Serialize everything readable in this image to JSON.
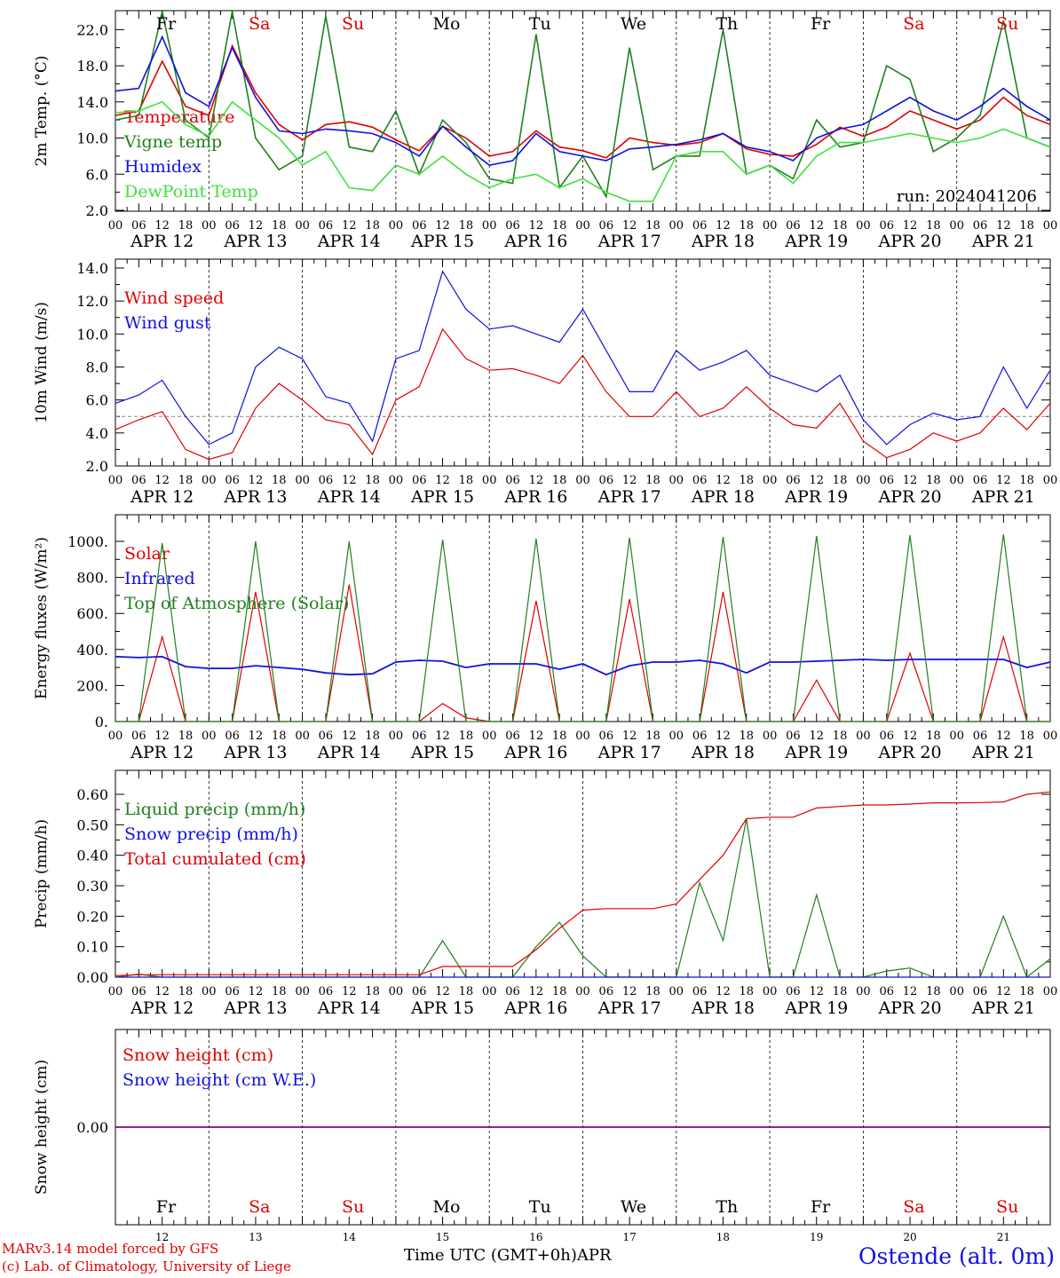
{
  "chart_data": [
    {
      "type": "line",
      "ylabel": "2m Temp. (°C)",
      "ylim": [
        2.0,
        24.0
      ],
      "yticks": [
        2.0,
        6.0,
        10.0,
        14.0,
        18.0,
        22.0
      ],
      "run_label": "run: 2024041206",
      "day_names": [
        {
          "label": "Fr",
          "color": "#000000"
        },
        {
          "label": "Sa",
          "color": "#e00000"
        },
        {
          "label": "Su",
          "color": "#e00000"
        },
        {
          "label": "Mo",
          "color": "#000000"
        },
        {
          "label": "Tu",
          "color": "#000000"
        },
        {
          "label": "We",
          "color": "#000000"
        },
        {
          "label": "Th",
          "color": "#000000"
        },
        {
          "label": "Fr",
          "color": "#000000"
        },
        {
          "label": "Sa",
          "color": "#e00000"
        },
        {
          "label": "Su",
          "color": "#e00000"
        }
      ],
      "x_hours": [
        0,
        6,
        12,
        18,
        24,
        30,
        36,
        42,
        48,
        54,
        60,
        66,
        72,
        78,
        84,
        90,
        96,
        102,
        108,
        114,
        120,
        126,
        132,
        138,
        144,
        150,
        156,
        162,
        168,
        174,
        180,
        186,
        192,
        198,
        204,
        210,
        216,
        222,
        228,
        234,
        240
      ],
      "series": [
        {
          "name": "Temperature",
          "color": "#e00000",
          "values": [
            12.5,
            13.0,
            18.5,
            13.5,
            12.5,
            20.2,
            15.0,
            11.5,
            9.8,
            11.5,
            11.8,
            11.2,
            9.8,
            8.6,
            11.3,
            10.0,
            8.0,
            8.5,
            10.8,
            9.0,
            8.6,
            7.8,
            10.0,
            9.5,
            9.2,
            9.5,
            10.5,
            8.8,
            8.2,
            8.0,
            9.3,
            11.2,
            10.2,
            11.2,
            13.0,
            12.0,
            11.0,
            12.0,
            14.5,
            12.5,
            11.5
          ]
        },
        {
          "name": "Vigne temp",
          "color": "#208020",
          "values": [
            12.0,
            12.5,
            24.0,
            12.0,
            10.0,
            24.0,
            10.0,
            6.5,
            8.0,
            23.5,
            9.0,
            8.5,
            13.0,
            6.0,
            12.0,
            9.5,
            5.5,
            5.0,
            21.5,
            4.5,
            8.0,
            3.5,
            20.0,
            6.5,
            8.0,
            8.0,
            22.0,
            6.0,
            7.0,
            5.5,
            12.0,
            9.0,
            9.5,
            18.0,
            16.5,
            8.5,
            10.0,
            12.5,
            23.0,
            10.0,
            9.0
          ]
        },
        {
          "name": "Humidex",
          "color": "#1010e0",
          "values": [
            15.2,
            15.5,
            21.2,
            15.0,
            13.5,
            20.0,
            14.5,
            10.8,
            10.5,
            11.0,
            10.8,
            10.5,
            9.5,
            8.0,
            11.3,
            9.0,
            7.0,
            7.5,
            10.5,
            8.5,
            8.0,
            7.5,
            8.8,
            9.0,
            9.3,
            9.8,
            10.5,
            9.0,
            8.5,
            7.5,
            10.0,
            11.0,
            11.5,
            13.0,
            14.5,
            13.0,
            12.0,
            13.5,
            15.5,
            13.5,
            12.0
          ]
        },
        {
          "name": "DewPoint Temp",
          "color": "#40e040",
          "values": [
            12.8,
            13.0,
            14.0,
            11.5,
            10.2,
            14.0,
            12.0,
            10.0,
            7.0,
            8.5,
            4.5,
            4.2,
            7.0,
            6.0,
            8.0,
            6.0,
            4.5,
            5.5,
            6.0,
            4.5,
            5.5,
            4.0,
            3.0,
            3.0,
            8.0,
            8.5,
            8.5,
            6.0,
            7.0,
            5.0,
            8.0,
            9.5,
            9.5,
            10.0,
            10.5,
            10.0,
            9.5,
            10.0,
            11.0,
            10.0,
            9.0
          ]
        }
      ]
    },
    {
      "type": "line",
      "ylabel": "10m Wind (m/s)",
      "ylim": [
        2.0,
        14.0
      ],
      "yticks": [
        2.0,
        4.0,
        6.0,
        8.0,
        10.0,
        12.0,
        14.0
      ],
      "ref_line": 5.0,
      "x_hours": [
        0,
        6,
        12,
        18,
        24,
        30,
        36,
        42,
        48,
        54,
        60,
        66,
        72,
        78,
        84,
        90,
        96,
        102,
        108,
        114,
        120,
        126,
        132,
        138,
        144,
        150,
        156,
        162,
        168,
        174,
        180,
        186,
        192,
        198,
        204,
        210,
        216,
        222,
        228,
        234,
        240
      ],
      "series": [
        {
          "name": "Wind speed",
          "color": "#e00000",
          "values": [
            4.2,
            4.8,
            5.3,
            3.0,
            2.4,
            2.8,
            5.5,
            7.0,
            6.0,
            4.8,
            4.5,
            2.7,
            6.0,
            6.8,
            10.3,
            8.5,
            7.8,
            7.9,
            7.5,
            7.0,
            8.7,
            6.5,
            5.0,
            5.0,
            6.5,
            5.0,
            5.5,
            6.8,
            5.5,
            4.5,
            4.3,
            5.8,
            3.5,
            2.5,
            3.0,
            4.0,
            3.5,
            4.0,
            5.5,
            4.2,
            5.8
          ]
        },
        {
          "name": "Wind gust",
          "color": "#1010e0",
          "values": [
            5.8,
            6.3,
            7.2,
            5.0,
            3.3,
            4.0,
            8.0,
            9.2,
            8.5,
            6.2,
            5.8,
            3.5,
            8.5,
            9.0,
            13.8,
            11.5,
            10.3,
            10.5,
            10.0,
            9.5,
            11.5,
            9.0,
            6.5,
            6.5,
            9.0,
            7.8,
            8.3,
            9.0,
            7.5,
            7.0,
            6.5,
            7.5,
            4.8,
            3.3,
            4.5,
            5.2,
            4.8,
            5.0,
            8.0,
            5.5,
            7.8
          ]
        }
      ]
    },
    {
      "type": "line",
      "ylabel": "Energy fluxes (W/m²)",
      "ylim": [
        0,
        1100
      ],
      "yticks": [
        0,
        200,
        400,
        600,
        800,
        1000
      ],
      "ytick_labels": [
        "0.",
        "200.",
        "400.",
        "600.",
        "800.",
        "1000."
      ],
      "x_hours": [
        0,
        6,
        12,
        18,
        24,
        30,
        36,
        42,
        48,
        54,
        60,
        66,
        72,
        78,
        84,
        90,
        96,
        102,
        108,
        114,
        120,
        126,
        132,
        138,
        144,
        150,
        156,
        162,
        168,
        174,
        180,
        186,
        192,
        198,
        204,
        210,
        216,
        222,
        228,
        234,
        240
      ],
      "series": [
        {
          "name": "Solar",
          "color": "#e00000",
          "values": [
            0,
            0,
            470,
            0,
            0,
            0,
            720,
            0,
            0,
            0,
            760,
            0,
            0,
            0,
            100,
            20,
            0,
            0,
            670,
            0,
            0,
            0,
            680,
            0,
            0,
            0,
            720,
            0,
            0,
            0,
            230,
            0,
            0,
            0,
            380,
            0,
            0,
            0,
            470,
            0,
            0
          ]
        },
        {
          "name": "Infrared",
          "color": "#1010e0",
          "values": [
            360,
            355,
            360,
            305,
            295,
            295,
            310,
            300,
            290,
            270,
            260,
            265,
            330,
            340,
            335,
            300,
            320,
            320,
            320,
            290,
            320,
            260,
            310,
            330,
            330,
            340,
            320,
            270,
            330,
            330,
            335,
            340,
            345,
            340,
            345,
            345,
            345,
            345,
            345,
            300,
            330
          ]
        },
        {
          "name": "Top of Atmosphere (Solar)",
          "color": "#208020",
          "values": [
            0,
            0,
            990,
            0,
            0,
            0,
            1000,
            0,
            0,
            0,
            1000,
            0,
            0,
            0,
            1010,
            0,
            0,
            0,
            1015,
            0,
            0,
            0,
            1020,
            0,
            0,
            0,
            1025,
            0,
            0,
            0,
            1030,
            0,
            0,
            0,
            1035,
            0,
            0,
            0,
            1040,
            0,
            0
          ]
        }
      ]
    },
    {
      "type": "line",
      "ylabel": "Precip (mm/h)",
      "ylim": [
        0.0,
        0.65
      ],
      "yticks": [
        0.0,
        0.1,
        0.2,
        0.3,
        0.4,
        0.5,
        0.6
      ],
      "ytick_labels": [
        "0.00",
        "0.10",
        "0.20",
        "0.30",
        "0.40",
        "0.50",
        "0.60"
      ],
      "x_hours": [
        0,
        6,
        12,
        18,
        24,
        30,
        36,
        42,
        48,
        54,
        60,
        66,
        72,
        78,
        84,
        90,
        96,
        102,
        108,
        114,
        120,
        126,
        132,
        138,
        144,
        150,
        156,
        162,
        168,
        174,
        180,
        186,
        192,
        198,
        204,
        210,
        216,
        222,
        228,
        234,
        240
      ],
      "series": [
        {
          "name": "Liquid precip (mm/h)",
          "color": "#208020",
          "values": [
            0.0,
            0.01,
            0.0,
            0.0,
            0.0,
            0.0,
            0.0,
            0.0,
            0.0,
            0.0,
            0.0,
            0.0,
            0.0,
            0.0,
            0.12,
            0.0,
            0.0,
            0.0,
            0.1,
            0.18,
            0.07,
            0.0,
            0.0,
            0.0,
            0.0,
            0.31,
            0.12,
            0.52,
            0.0,
            0.0,
            0.27,
            0.0,
            0.0,
            0.02,
            0.03,
            0.0,
            0.0,
            0.0,
            0.2,
            0.0,
            0.06
          ]
        },
        {
          "name": "Snow precip (mm/h)",
          "color": "#1010e0",
          "values": [
            0.0,
            0.0,
            0.0,
            0.0,
            0.0,
            0.0,
            0.0,
            0.0,
            0.0,
            0.0,
            0.0,
            0.0,
            0.0,
            0.0,
            0.0,
            0.0,
            0.0,
            0.0,
            0.0,
            0.0,
            0.0,
            0.0,
            0.0,
            0.0,
            0.0,
            0.0,
            0.0,
            0.0,
            0.0,
            0.0,
            0.0,
            0.0,
            0.0,
            0.0,
            0.0,
            0.0,
            0.0,
            0.0,
            0.0,
            0.0,
            0.0
          ]
        },
        {
          "name": "Total cumulated (cm)",
          "color": "#e00000",
          "values": [
            0.005,
            0.008,
            0.008,
            0.008,
            0.008,
            0.008,
            0.008,
            0.008,
            0.008,
            0.008,
            0.008,
            0.008,
            0.008,
            0.008,
            0.035,
            0.035,
            0.035,
            0.035,
            0.09,
            0.16,
            0.22,
            0.225,
            0.225,
            0.225,
            0.24,
            0.32,
            0.4,
            0.52,
            0.525,
            0.525,
            0.555,
            0.56,
            0.565,
            0.565,
            0.568,
            0.572,
            0.572,
            0.573,
            0.575,
            0.6,
            0.608
          ]
        }
      ]
    },
    {
      "type": "line",
      "ylabel": "Snow height (cm)",
      "ylim": [
        -1.0,
        1.0
      ],
      "yticks": [
        0.0
      ],
      "ytick_labels": [
        "0.00"
      ],
      "x_hours": [
        0,
        240
      ],
      "series": [
        {
          "name": "Snow height (cm)",
          "color": "#e00000",
          "values": [
            0.0,
            0.0
          ]
        },
        {
          "name": "Snow height (cm W.E.)",
          "color": "#1010e0",
          "values": [
            0.0,
            0.0
          ]
        }
      ]
    }
  ],
  "x_axis": {
    "hour_labels": [
      "00",
      "06",
      "12",
      "18"
    ],
    "end_label": "00",
    "dates": [
      "APR 12",
      "APR 13",
      "APR 14",
      "APR 15",
      "APR 16",
      "APR 17",
      "APR 18",
      "APR 19",
      "APR 20",
      "APR 21"
    ],
    "bottom_day_numbers": [
      "12",
      "13",
      "14",
      "15",
      "16",
      "17",
      "18",
      "19",
      "20",
      "21"
    ],
    "xlabel": "Time UTC (GMT+0h)",
    "month": "APR"
  },
  "footer": {
    "model_line": "MARv3.14 model forced by GFS",
    "credit_line": "(c) Lab. of Climatology, University of Liege",
    "station": "Ostende (alt. 0m)"
  },
  "colors": {
    "red": "#e00000",
    "green": "#208020",
    "blue": "#1010e0",
    "light_green": "#40e040",
    "purple": "#800080"
  }
}
